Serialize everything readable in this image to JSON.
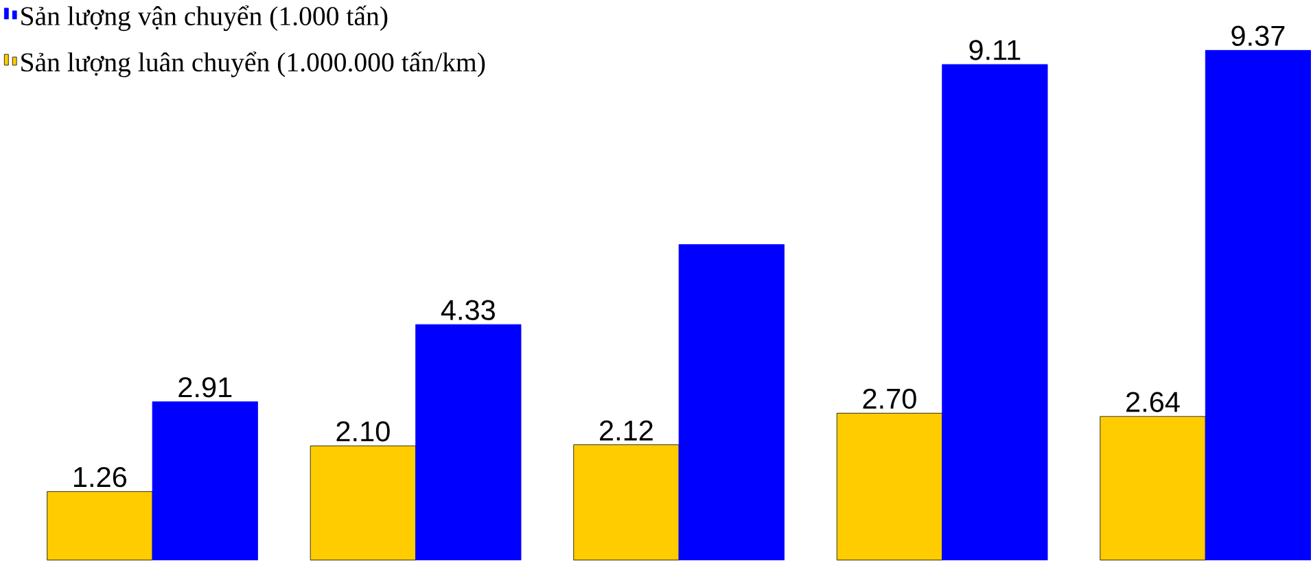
{
  "chart_data": {
    "type": "bar",
    "categories": [
      null,
      null,
      null,
      null,
      null
    ],
    "legend": "top left",
    "series": [
      {
        "name": "Sản lượng luân chuyển (1.000.000 tấn/km)",
        "color": "#ffcc00",
        "values": [
          1.26,
          2.1,
          2.12,
          2.7,
          2.64
        ],
        "value_labels": [
          "1.26",
          "2.10",
          "2.12",
          "2.70",
          "2.64"
        ]
      },
      {
        "name": "Sản lượng vận chuyển (1.000 tấn)",
        "color": "#0000ff",
        "values": [
          2.91,
          4.33,
          5.8,
          9.11,
          9.37
        ],
        "value_labels": [
          "2.91",
          "4.33",
          null,
          "9.11",
          "9.37"
        ]
      }
    ]
  }
}
